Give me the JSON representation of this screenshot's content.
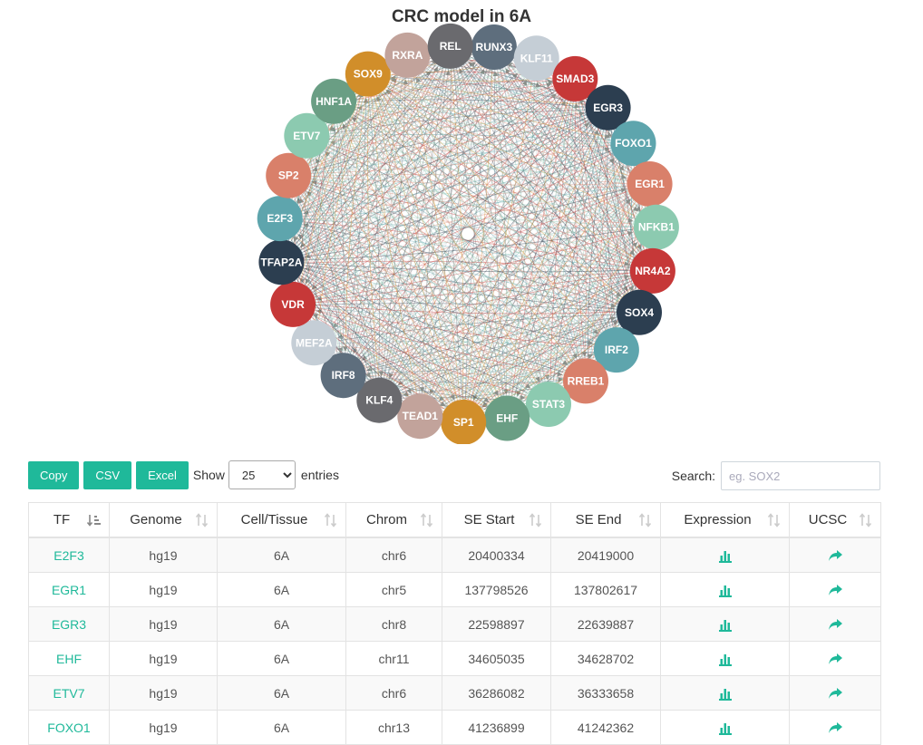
{
  "network": {
    "title": "CRC model in 6A",
    "nodes": [
      {
        "label": "RUNX3",
        "color": "#5e6e7d"
      },
      {
        "label": "KLF11",
        "color": "#c5ced6"
      },
      {
        "label": "SMAD3",
        "color": "#c63838"
      },
      {
        "label": "EGR3",
        "color": "#2c3e50"
      },
      {
        "label": "FOXO1",
        "color": "#5ea5ad"
      },
      {
        "label": "EGR1",
        "color": "#d9806a"
      },
      {
        "label": "NFKB1",
        "color": "#8ccab0"
      },
      {
        "label": "NR4A2",
        "color": "#c63838"
      },
      {
        "label": "SOX4",
        "color": "#2c3e50"
      },
      {
        "label": "IRF2",
        "color": "#5ea5ad"
      },
      {
        "label": "RREB1",
        "color": "#d9806a"
      },
      {
        "label": "STAT3",
        "color": "#8ccab0"
      },
      {
        "label": "EHF",
        "color": "#6a9e84"
      },
      {
        "label": "SP1",
        "color": "#d18e2a"
      },
      {
        "label": "TEAD1",
        "color": "#c2a39b"
      },
      {
        "label": "KLF4",
        "color": "#6a6a6e"
      },
      {
        "label": "IRF8",
        "color": "#5e6e7d"
      },
      {
        "label": "MEF2A",
        "color": "#c5ced6"
      },
      {
        "label": "VDR",
        "color": "#c63838"
      },
      {
        "label": "TFAP2A",
        "color": "#2c3e50"
      },
      {
        "label": "E2F3",
        "color": "#5ea5ad"
      },
      {
        "label": "SP2",
        "color": "#d9806a"
      },
      {
        "label": "ETV7",
        "color": "#8ccab0"
      },
      {
        "label": "HNF1A",
        "color": "#6a9e84"
      },
      {
        "label": "SOX9",
        "color": "#d18e2a"
      },
      {
        "label": "RXRA",
        "color": "#c2a39b"
      },
      {
        "label": "REL",
        "color": "#6a6a6e"
      }
    ]
  },
  "controls": {
    "copy_label": "Copy",
    "csv_label": "CSV",
    "excel_label": "Excel",
    "show_label": "Show",
    "length_value": "25",
    "entries_label": "entries",
    "search_label": "Search:",
    "search_placeholder": "eg. SOX2"
  },
  "table": {
    "columns": [
      "TF",
      "Genome",
      "Cell/Tissue",
      "Chrom",
      "SE Start",
      "SE End",
      "Expression",
      "UCSC"
    ],
    "rows": [
      {
        "tf": "E2F3",
        "genome": "hg19",
        "cell": "6A",
        "chrom": "chr6",
        "start": "20400334",
        "end": "20419000"
      },
      {
        "tf": "EGR1",
        "genome": "hg19",
        "cell": "6A",
        "chrom": "chr5",
        "start": "137798526",
        "end": "137802617"
      },
      {
        "tf": "EGR3",
        "genome": "hg19",
        "cell": "6A",
        "chrom": "chr8",
        "start": "22598897",
        "end": "22639887"
      },
      {
        "tf": "EHF",
        "genome": "hg19",
        "cell": "6A",
        "chrom": "chr11",
        "start": "34605035",
        "end": "34628702"
      },
      {
        "tf": "ETV7",
        "genome": "hg19",
        "cell": "6A",
        "chrom": "chr6",
        "start": "36286082",
        "end": "36333658"
      },
      {
        "tf": "FOXO1",
        "genome": "hg19",
        "cell": "6A",
        "chrom": "chr13",
        "start": "41236899",
        "end": "41242362"
      }
    ]
  },
  "icons": {
    "expression": "bar-chart-icon",
    "ucsc": "share-arrow-icon",
    "sort_active": "sort-amount-down-icon",
    "sort": "sort-arrows-icon"
  },
  "colors": {
    "accent": "#1fb99a"
  }
}
